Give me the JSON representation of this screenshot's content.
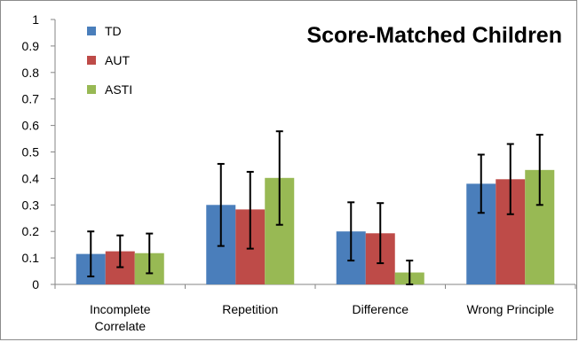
{
  "chart_data": {
    "type": "bar",
    "title": "Score-Matched Children",
    "xlabel": "",
    "ylabel": "",
    "ylim": [
      0,
      1
    ],
    "yticks": [
      "0",
      "0.1",
      "0.2",
      "0.3",
      "0.4",
      "0.5",
      "0.6",
      "0.7",
      "0.8",
      "0.9",
      "1"
    ],
    "categories": [
      [
        "Incomplete",
        "Correlate"
      ],
      [
        "Repetition"
      ],
      [
        "Difference"
      ],
      [
        "Wrong Principle"
      ]
    ],
    "series": [
      {
        "name": "TD",
        "color": "#4a7ebb",
        "values": [
          0.115,
          0.3,
          0.2,
          0.38
        ],
        "error_low": [
          0.03,
          0.145,
          0.09,
          0.27
        ],
        "error_high": [
          0.2,
          0.455,
          0.31,
          0.49
        ]
      },
      {
        "name": "AUT",
        "color": "#be4b48",
        "values": [
          0.125,
          0.283,
          0.193,
          0.397
        ],
        "error_low": [
          0.065,
          0.135,
          0.08,
          0.265
        ],
        "error_high": [
          0.185,
          0.425,
          0.307,
          0.53
        ]
      },
      {
        "name": "ASTI",
        "color": "#98b954",
        "values": [
          0.118,
          0.402,
          0.045,
          0.432
        ],
        "error_low": [
          0.042,
          0.225,
          0.0,
          0.3
        ],
        "error_high": [
          0.192,
          0.578,
          0.09,
          0.565
        ]
      }
    ],
    "legend_position": "top-left",
    "grid": false,
    "error_bars": true
  }
}
